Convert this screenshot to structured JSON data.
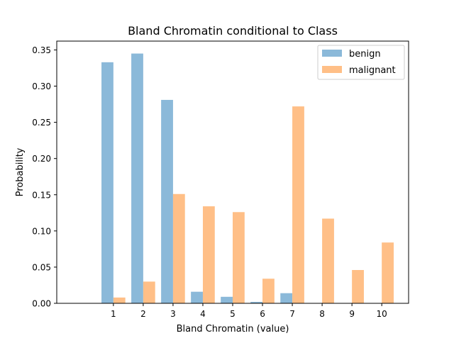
{
  "chart_data": {
    "type": "bar",
    "title": "Bland Chromatin conditional to Class",
    "xlabel": "Bland Chromatin (value)",
    "ylabel": "Probability",
    "categories": [
      "1",
      "2",
      "3",
      "4",
      "5",
      "6",
      "7",
      "8",
      "9",
      "10"
    ],
    "x": [
      1,
      2,
      3,
      4,
      5,
      6,
      7,
      8,
      9,
      10
    ],
    "series": [
      {
        "name": "benign",
        "color": "#8bb9d9",
        "values": [
          0.333,
          0.345,
          0.281,
          0.016,
          0.009,
          0.002,
          0.014,
          0.0,
          0.0,
          0.0
        ]
      },
      {
        "name": "malignant",
        "color": "#ffbf87",
        "values": [
          0.008,
          0.03,
          0.151,
          0.134,
          0.126,
          0.034,
          0.272,
          0.117,
          0.046,
          0.084
        ]
      }
    ],
    "xlim": [
      -0.9,
      10.9
    ],
    "ylim": [
      0,
      0.3622
    ],
    "yticks": [
      0.0,
      0.05,
      0.1,
      0.15,
      0.2,
      0.25,
      0.3,
      0.35
    ],
    "ytick_labels": [
      "0.00",
      "0.05",
      "0.10",
      "0.15",
      "0.20",
      "0.25",
      "0.30",
      "0.35"
    ],
    "grid": false,
    "legend_position": "top-right"
  }
}
